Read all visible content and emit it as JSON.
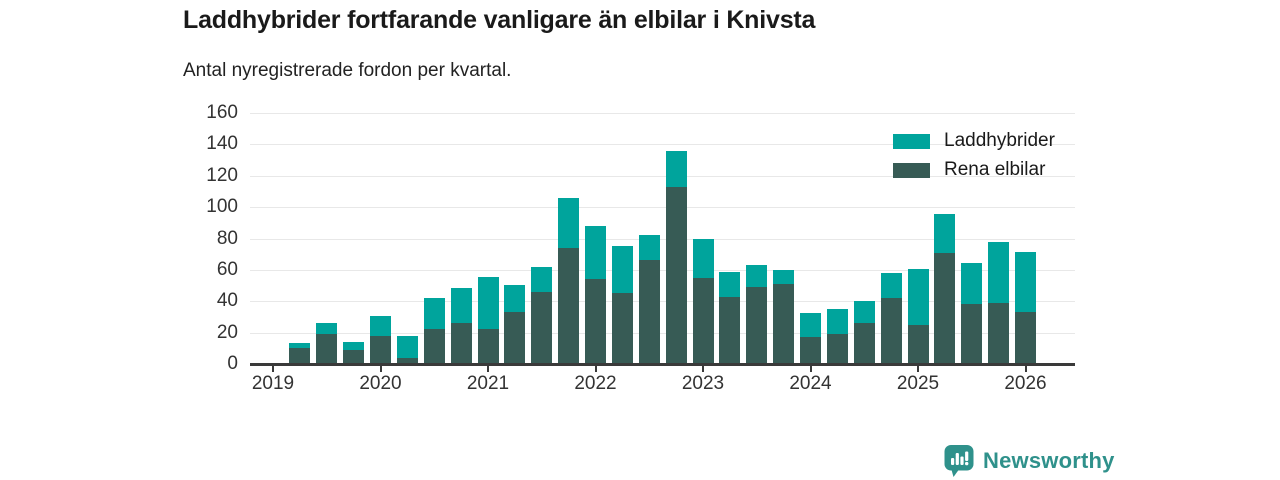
{
  "header": {
    "title": "Laddhybrider fortfarande vanligare än elbilar i Knivsta",
    "subtitle": "Antal nyregistrerade fordon per kvartal."
  },
  "chart_data": {
    "type": "bar",
    "stacked": true,
    "title": "Laddhybrider fortfarande vanligare än elbilar i Knivsta",
    "subtitle": "Antal nyregistrerade fordon per kvartal.",
    "xlabel": "",
    "ylabel": "",
    "ylim": [
      0,
      160
    ],
    "y_ticks": [
      0,
      20,
      40,
      60,
      80,
      100,
      120,
      140,
      160
    ],
    "x_tick_labels": [
      "2019",
      "2020",
      "2021",
      "2022",
      "2023",
      "2024",
      "2025",
      "2026"
    ],
    "grid": true,
    "legend_position": "top-right",
    "x": [
      "2019 Q2",
      "2019 Q3",
      "2019 Q4",
      "2020 Q1",
      "2020 Q2",
      "2020 Q3",
      "2020 Q4",
      "2021 Q1",
      "2021 Q2",
      "2021 Q3",
      "2021 Q4",
      "2022 Q1",
      "2022 Q2",
      "2022 Q3",
      "2022 Q4",
      "2023 Q1",
      "2023 Q2",
      "2023 Q3",
      "2023 Q4",
      "2024 Q1",
      "2024 Q2",
      "2024 Q3",
      "2024 Q4",
      "2025 Q1",
      "2025 Q2",
      "2025 Q3",
      "2025 Q4",
      "2026 Q1"
    ],
    "series": [
      {
        "name": "Laddhybrider",
        "color": "#00a49c",
        "values": [
          3,
          7,
          5,
          13,
          14,
          20,
          22,
          33,
          17,
          16,
          32,
          34,
          30,
          16,
          23,
          25,
          16,
          14,
          9,
          15,
          16,
          14,
          16,
          36,
          25,
          26,
          39,
          38
        ]
      },
      {
        "name": "Rena elbilar",
        "color": "#375b55",
        "values": [
          10,
          19,
          9,
          18,
          4,
          22,
          26,
          22,
          33,
          46,
          74,
          54,
          45,
          66,
          113,
          55,
          43,
          49,
          51,
          17,
          19,
          26,
          42,
          25,
          71,
          38,
          39,
          33
        ]
      }
    ]
  },
  "legend": {
    "items": [
      "Laddhybrider",
      "Rena elbilar"
    ]
  },
  "footer": {
    "brand": "Newsworthy",
    "icon": "newsworthy-bubble-chart-icon"
  },
  "colors": {
    "laddhybrider": "#00a49c",
    "rena_elbilar": "#375b55",
    "grid": "#e8e8e8",
    "axis": "#3a3a3a",
    "text": "#1a1a1a",
    "logo": "#2f918b"
  }
}
